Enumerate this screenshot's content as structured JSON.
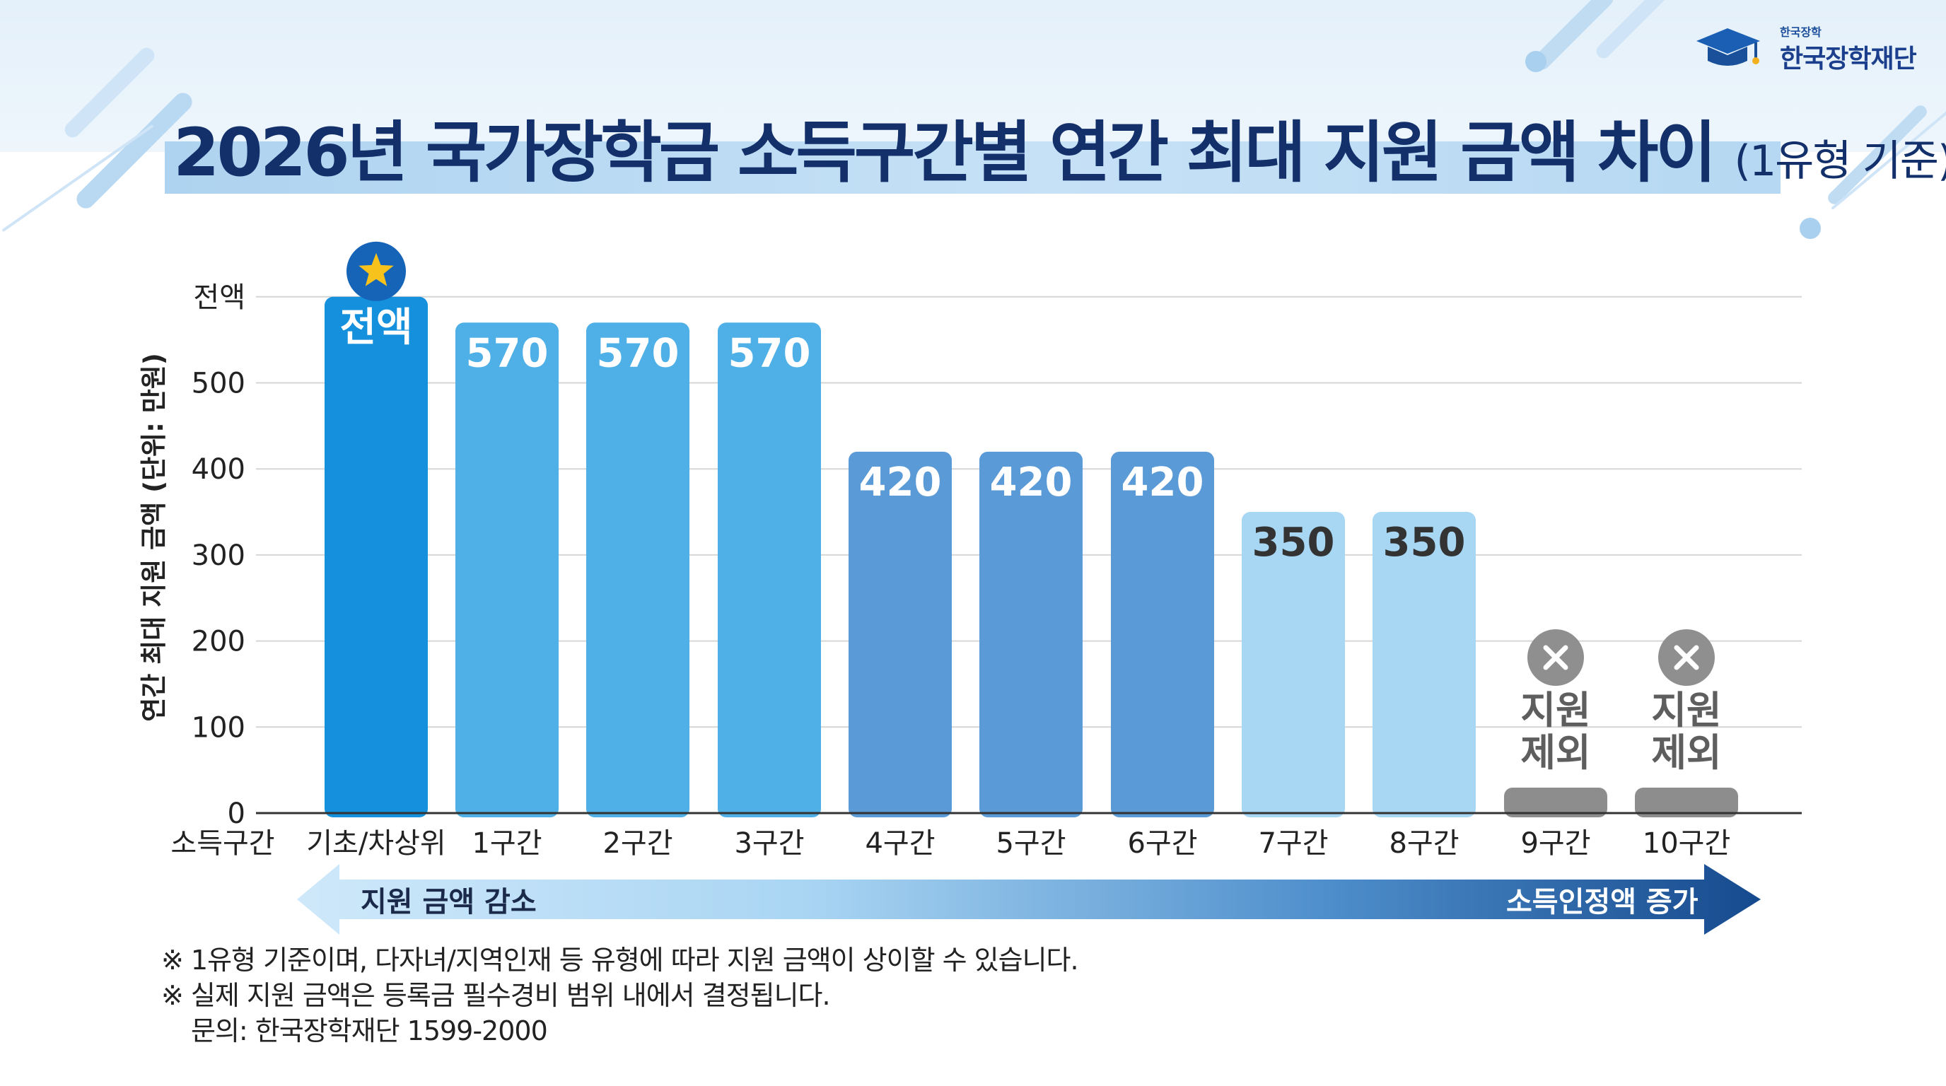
{
  "header": {
    "logo_small": "한국장학",
    "logo_text": "한국장학재단",
    "title_main": "2026년 국가장학금 소득구간별 연간 최대 지원 금액 차이",
    "title_sub": "(1유형 기준)"
  },
  "chart_data": {
    "type": "bar",
    "ylabel": "연간 최대 지원 금액 (단위: 만원)",
    "x_axis_title": "소득구간",
    "y_ticks": [
      "0",
      "100",
      "200",
      "300",
      "400",
      "500",
      "전액"
    ],
    "ylim": [
      0,
      600
    ],
    "grid": true,
    "categories": [
      "기초/차상위",
      "1구간",
      "2구간",
      "3구간",
      "4구간",
      "5구간",
      "6구간",
      "7구간",
      "8구간",
      "9구간",
      "10구간"
    ],
    "values": [
      600,
      570,
      570,
      570,
      420,
      420,
      420,
      350,
      350,
      0,
      0
    ],
    "labels": [
      "전액",
      "570",
      "570",
      "570",
      "420",
      "420",
      "420",
      "350",
      "350",
      "지원\n제외",
      "지원\n제외"
    ],
    "colors": [
      "#1490dd",
      "#4eb0e6",
      "#4eb0e6",
      "#4eb0e6",
      "#5a9ad6",
      "#5a9ad6",
      "#5a9ad6",
      "#a8d7f4",
      "#a8d7f4",
      "#8d8d8d",
      "#8d8d8d"
    ],
    "label_colors": [
      "#ffffff",
      "#ffffff",
      "#ffffff",
      "#ffffff",
      "#ffffff",
      "#ffffff",
      "#ffffff",
      "#333333",
      "#333333",
      "#5e5e5e",
      "#5e5e5e"
    ],
    "markers": [
      "star-icon",
      null,
      null,
      null,
      null,
      null,
      null,
      null,
      null,
      "x-icon",
      "x-icon"
    ]
  },
  "arrow": {
    "left_label": "지원 금액 감소",
    "right_label": "소득인정액 증가"
  },
  "notes": {
    "line1": "※ 1유형 기준이며, 다자녀/지역인재 등 유형에 따라 지원 금액이 상이할 수 있습니다.",
    "line2": "※ 실제 지원 금액은 등록금 필수경비 범위 내에서 결정됩니다.",
    "contact": "문의: 한국장학재단 1599-2000"
  }
}
